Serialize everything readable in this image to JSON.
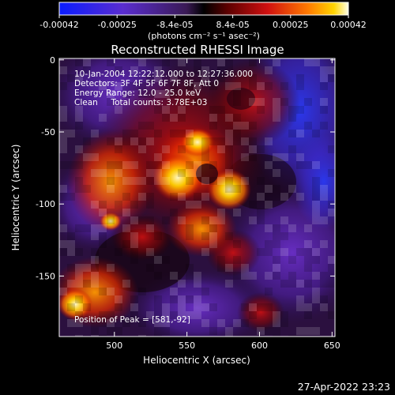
{
  "colorbar": {
    "tick_labels": [
      "-0.00042",
      "-0.00025",
      "-8.4e-05",
      "8.4e-05",
      "0.00025",
      "0.00042"
    ],
    "unit_label": "(photons cm⁻² s⁻¹ asec⁻²)",
    "range": [
      -0.00042,
      0.00042
    ]
  },
  "image": {
    "title": "Reconstructed RHESSI Image",
    "info_lines": [
      "10-Jan-2004 12:22:12.000 to 12:27:36.000",
      "Detectors: 3F 4F 5F 6F 7F 8F, Att 0",
      "Energy Range: 12.0 - 25.0 keV",
      "Clean     Total counts: 3.78E+03"
    ],
    "peak_label": "Position of Peak = [581,-92]",
    "x_range": [
      462,
      652
    ],
    "y_range": [
      -192,
      1
    ],
    "x_ticks": [
      "500",
      "550",
      "600",
      "650"
    ],
    "y_ticks": [
      "0",
      "-50",
      "-100",
      "-150"
    ],
    "x_tick_values": [
      500,
      550,
      600,
      650
    ],
    "y_tick_values": [
      0,
      -50,
      -100,
      -150
    ],
    "x_axis_label": "Heliocentric X (arcsec)",
    "y_axis_label": "Heliocentric Y (arcsec)"
  },
  "timestamp": "27-Apr-2022 23:23",
  "colors": {
    "background": "#000000",
    "text": "#ffffff",
    "negative_low": "#0a1cff",
    "negative_mid": "#6a2bb0",
    "zero": "#000000",
    "positive_mid": "#d01010",
    "positive_high": "#ffb000",
    "peak": "#ffffe6"
  }
}
